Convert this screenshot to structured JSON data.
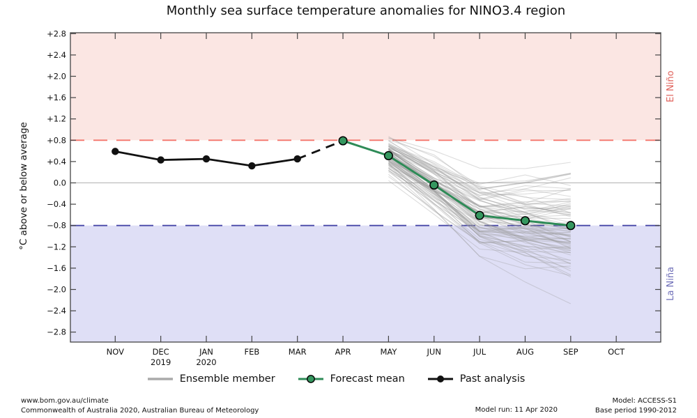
{
  "title": "Monthly sea surface temperature anomalies for NINO3.4 region",
  "colors": {
    "el_nino_band": "#fbe6e3",
    "la_nina_band": "#dfdff6",
    "el_nino_line": "#f4756b",
    "la_nina_line": "#4848a8",
    "el_nino_label": "#e0615a",
    "la_nina_label": "#6f6fb8",
    "forecast_mean": "#2e8b57",
    "forecast_marker": "#35975f",
    "past_analysis": "#111111",
    "ensemble": "#979797",
    "ensemble_legend": "#aaaaaa",
    "zero_line": "#b0b0b0",
    "frame": "#444444",
    "tick_label": "#111111"
  },
  "y_axis": {
    "label": "°C above or below average",
    "ticks": [
      {
        "label": "+2.8",
        "value": 2.8
      },
      {
        "label": "+2.4",
        "value": 2.4
      },
      {
        "label": "+2.0",
        "value": 2.0
      },
      {
        "label": "+1.6",
        "value": 1.6
      },
      {
        "label": "+1.2",
        "value": 1.2
      },
      {
        "label": "+0.8",
        "value": 0.8
      },
      {
        "label": "+0.4",
        "value": 0.4
      },
      {
        "label": "0.0",
        "value": 0.0
      },
      {
        "label": "−0.4",
        "value": -0.4
      },
      {
        "label": "−0.8",
        "value": -0.8
      },
      {
        "label": "−1.2",
        "value": -1.2
      },
      {
        "label": "−1.6",
        "value": -1.6
      },
      {
        "label": "−2.0",
        "value": -2.0
      },
      {
        "label": "−2.4",
        "value": -2.4
      },
      {
        "label": "−2.8",
        "value": -2.8
      }
    ]
  },
  "x_axis": {
    "months": [
      {
        "label": "NOV",
        "year": ""
      },
      {
        "label": "DEC",
        "year": "2019"
      },
      {
        "label": "JAN",
        "year": "2020"
      },
      {
        "label": "FEB",
        "year": ""
      },
      {
        "label": "MAR",
        "year": ""
      },
      {
        "label": "APR",
        "year": ""
      },
      {
        "label": "MAY",
        "year": ""
      },
      {
        "label": "JUN",
        "year": ""
      },
      {
        "label": "JUL",
        "year": ""
      },
      {
        "label": "AUG",
        "year": ""
      },
      {
        "label": "SEP",
        "year": ""
      },
      {
        "label": "OCT",
        "year": ""
      }
    ]
  },
  "bands": {
    "el_nino": {
      "label": "El Niño",
      "threshold": 0.8
    },
    "la_nina": {
      "label": "La Niña",
      "threshold": -0.8
    }
  },
  "legend": {
    "ensemble": "Ensemble member",
    "forecast": "Forecast mean",
    "past": "Past analysis"
  },
  "footer": {
    "website": "www.bom.gov.au/climate",
    "copyright": "Commonwealth of Australia 2020, Australian Bureau of Meteorology",
    "model_run": "Model run: 11 Apr 2020",
    "model": "Model: ACCESS-S1",
    "base_period": "Base period 1990-2012"
  },
  "chart_data": {
    "type": "line",
    "title": "Monthly sea surface temperature anomalies for NINO3.4 region",
    "ylabel": "°C above or below average",
    "ylim": [
      -3.0,
      2.82
    ],
    "grid": "zero-line-only",
    "legend_position": "bottom-center",
    "x_categories": [
      "NOV",
      "DEC",
      "JAN",
      "FEB",
      "MAR",
      "APR",
      "MAY",
      "JUN",
      "JUL",
      "AUG",
      "SEP",
      "OCT"
    ],
    "thresholds": {
      "el_nino": 0.8,
      "la_nina": -0.8,
      "zero": 0.0
    },
    "series": [
      {
        "name": "Past analysis",
        "style": "solid",
        "x": [
          "NOV",
          "DEC",
          "JAN",
          "FEB",
          "MAR"
        ],
        "values": [
          0.59,
          0.43,
          0.45,
          0.32,
          0.45
        ]
      },
      {
        "name": "Past analysis (provisional)",
        "style": "dashed",
        "x": [
          "MAR",
          "APR"
        ],
        "values": [
          0.45,
          0.79
        ]
      },
      {
        "name": "Forecast mean",
        "style": "solid-markers",
        "x": [
          "APR",
          "MAY",
          "JUN",
          "JUL",
          "AUG",
          "SEP"
        ],
        "values": [
          0.79,
          0.51,
          -0.04,
          -0.61,
          -0.71,
          -0.8
        ]
      }
    ],
    "ensemble": {
      "name": "Ensemble member",
      "x": [
        "MAY",
        "JUN",
        "JUL",
        "AUG",
        "SEP"
      ],
      "count": 90,
      "center": [
        0.51,
        -0.04,
        -0.61,
        -0.71,
        -0.8
      ],
      "spread": [
        0.25,
        0.36,
        0.45,
        0.52,
        0.6
      ],
      "envelope_min": [
        0.0,
        -1.0,
        -1.9,
        -2.25,
        -2.55
      ],
      "envelope_max": [
        1.12,
        0.93,
        0.46,
        0.5,
        0.45
      ],
      "seed": 11
    }
  }
}
